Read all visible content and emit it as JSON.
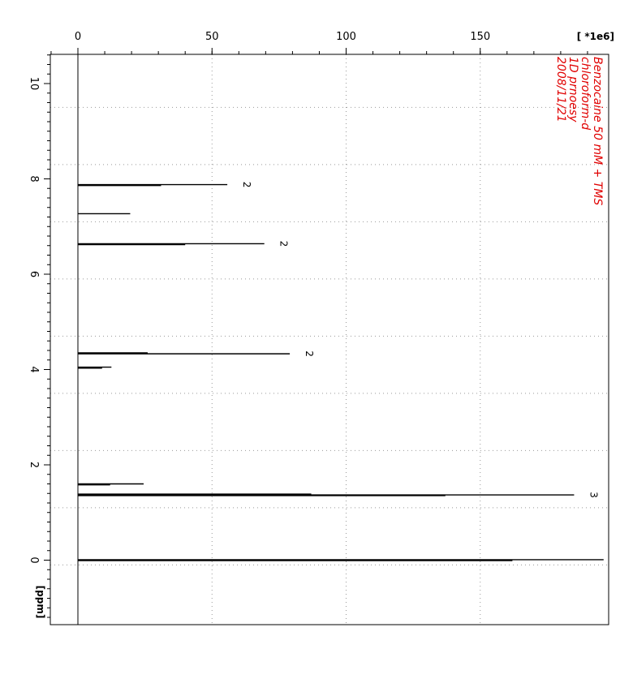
{
  "chart_data": {
    "type": "line",
    "title": "",
    "intensity_axis": {
      "label": "[ *1e6]",
      "ticks": [
        0,
        50,
        100,
        150
      ],
      "range": [
        -10,
        196
      ],
      "minor_step": 10
    },
    "shift_axis": {
      "label": "[ppm]",
      "ticks": [
        0,
        2,
        4,
        6,
        8,
        10
      ],
      "range": [
        -1.3,
        10.7
      ],
      "grid_lines": [
        -0.1,
        1.1,
        2.3,
        3.5,
        4.7,
        5.9,
        7.1,
        8.3,
        9.5
      ],
      "minor_step": 0.2
    },
    "grid": true,
    "annotation_color": "#e00000",
    "annotation_lines": [
      "Benzocaine 50 mM + TMS",
      "chloroform-d",
      "1D prnoesy",
      "2008/11/21"
    ],
    "peaks": [
      {
        "ppm": 7.88,
        "intensity": 55.7,
        "label": "2"
      },
      {
        "ppm": 7.86,
        "intensity": 31
      },
      {
        "ppm": 7.27,
        "intensity": 19.5
      },
      {
        "ppm": 6.64,
        "intensity": 69.5,
        "label": "2"
      },
      {
        "ppm": 6.62,
        "intensity": 40
      },
      {
        "ppm": 4.33,
        "intensity": 79,
        "label": "2"
      },
      {
        "ppm": 4.35,
        "intensity": 26
      },
      {
        "ppm": 4.05,
        "intensity": 12.5
      },
      {
        "ppm": 4.03,
        "intensity": 9
      },
      {
        "ppm": 1.6,
        "intensity": 24.5
      },
      {
        "ppm": 1.58,
        "intensity": 12
      },
      {
        "ppm": 1.37,
        "intensity": 185,
        "label": "3"
      },
      {
        "ppm": 1.355,
        "intensity": 137
      },
      {
        "ppm": 1.385,
        "intensity": 87
      },
      {
        "ppm": 0.01,
        "intensity": 196
      },
      {
        "ppm": -0.01,
        "intensity": 162
      }
    ]
  }
}
